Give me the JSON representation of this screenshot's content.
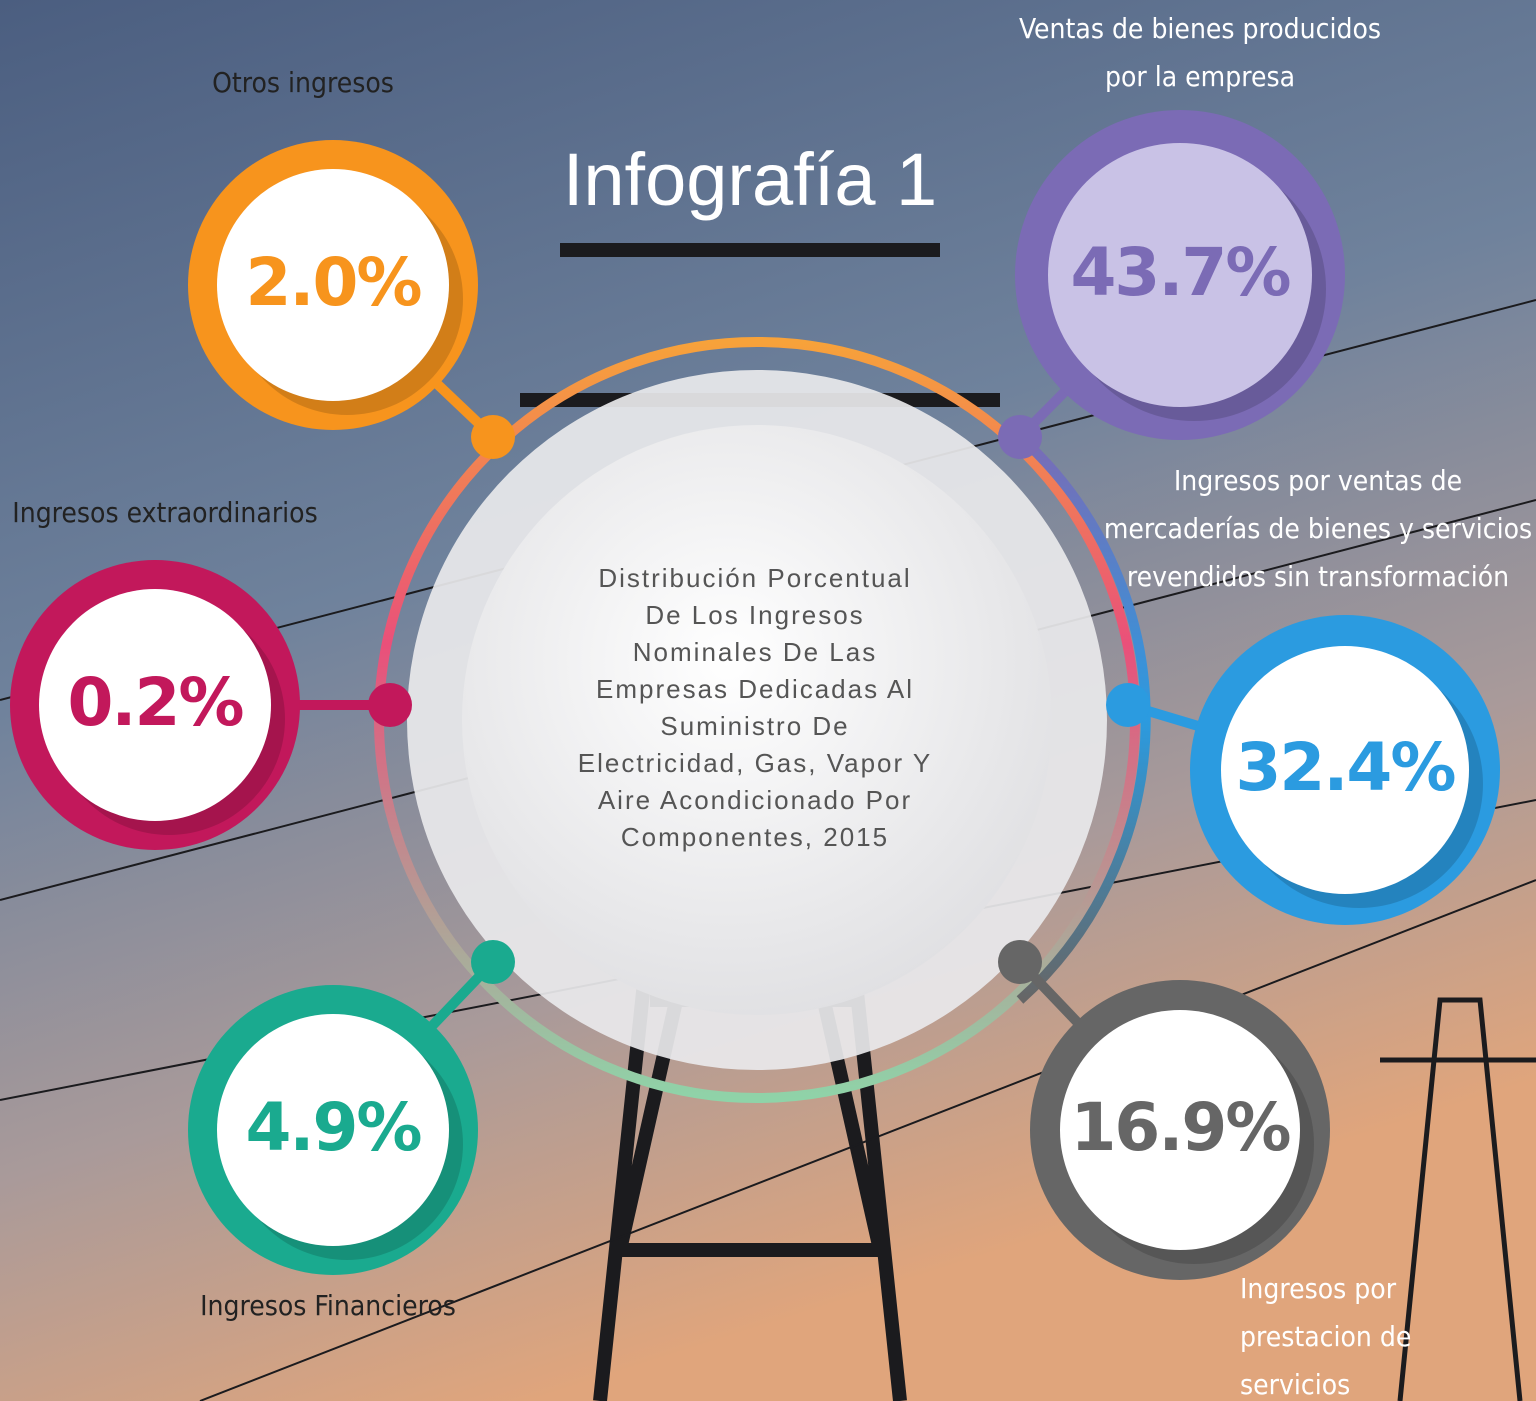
{
  "header": {
    "title": "Infografía 1"
  },
  "center": {
    "lines": [
      "Distribución Porcentual",
      "De Los Ingresos",
      "Nominales De Las",
      "Empresas Dedicadas Al",
      "Suministro De",
      "Electricidad, Gas, Vapor Y",
      "Aire Acondicionado Por",
      "Componentes, 2015"
    ]
  },
  "items": [
    {
      "label": [
        "Otros ingresos"
      ],
      "value": "2.0%"
    },
    {
      "label": [
        "Ventas de bienes producidos",
        "por la empresa"
      ],
      "value": "43.7%"
    },
    {
      "label": [
        "Ingresos extraordinarios"
      ],
      "value": "0.2%"
    },
    {
      "label": [
        "Ingresos por ventas de",
        "mercaderías de bienes y servicios",
        "revendidos sin transformación"
      ],
      "value": "32.4%"
    },
    {
      "label": [
        "Ingresos Financieros"
      ],
      "value": "4.9%"
    },
    {
      "label": [
        "Ingresos por",
        "prestacion de",
        "servicios"
      ],
      "value": "16.9%"
    }
  ]
}
